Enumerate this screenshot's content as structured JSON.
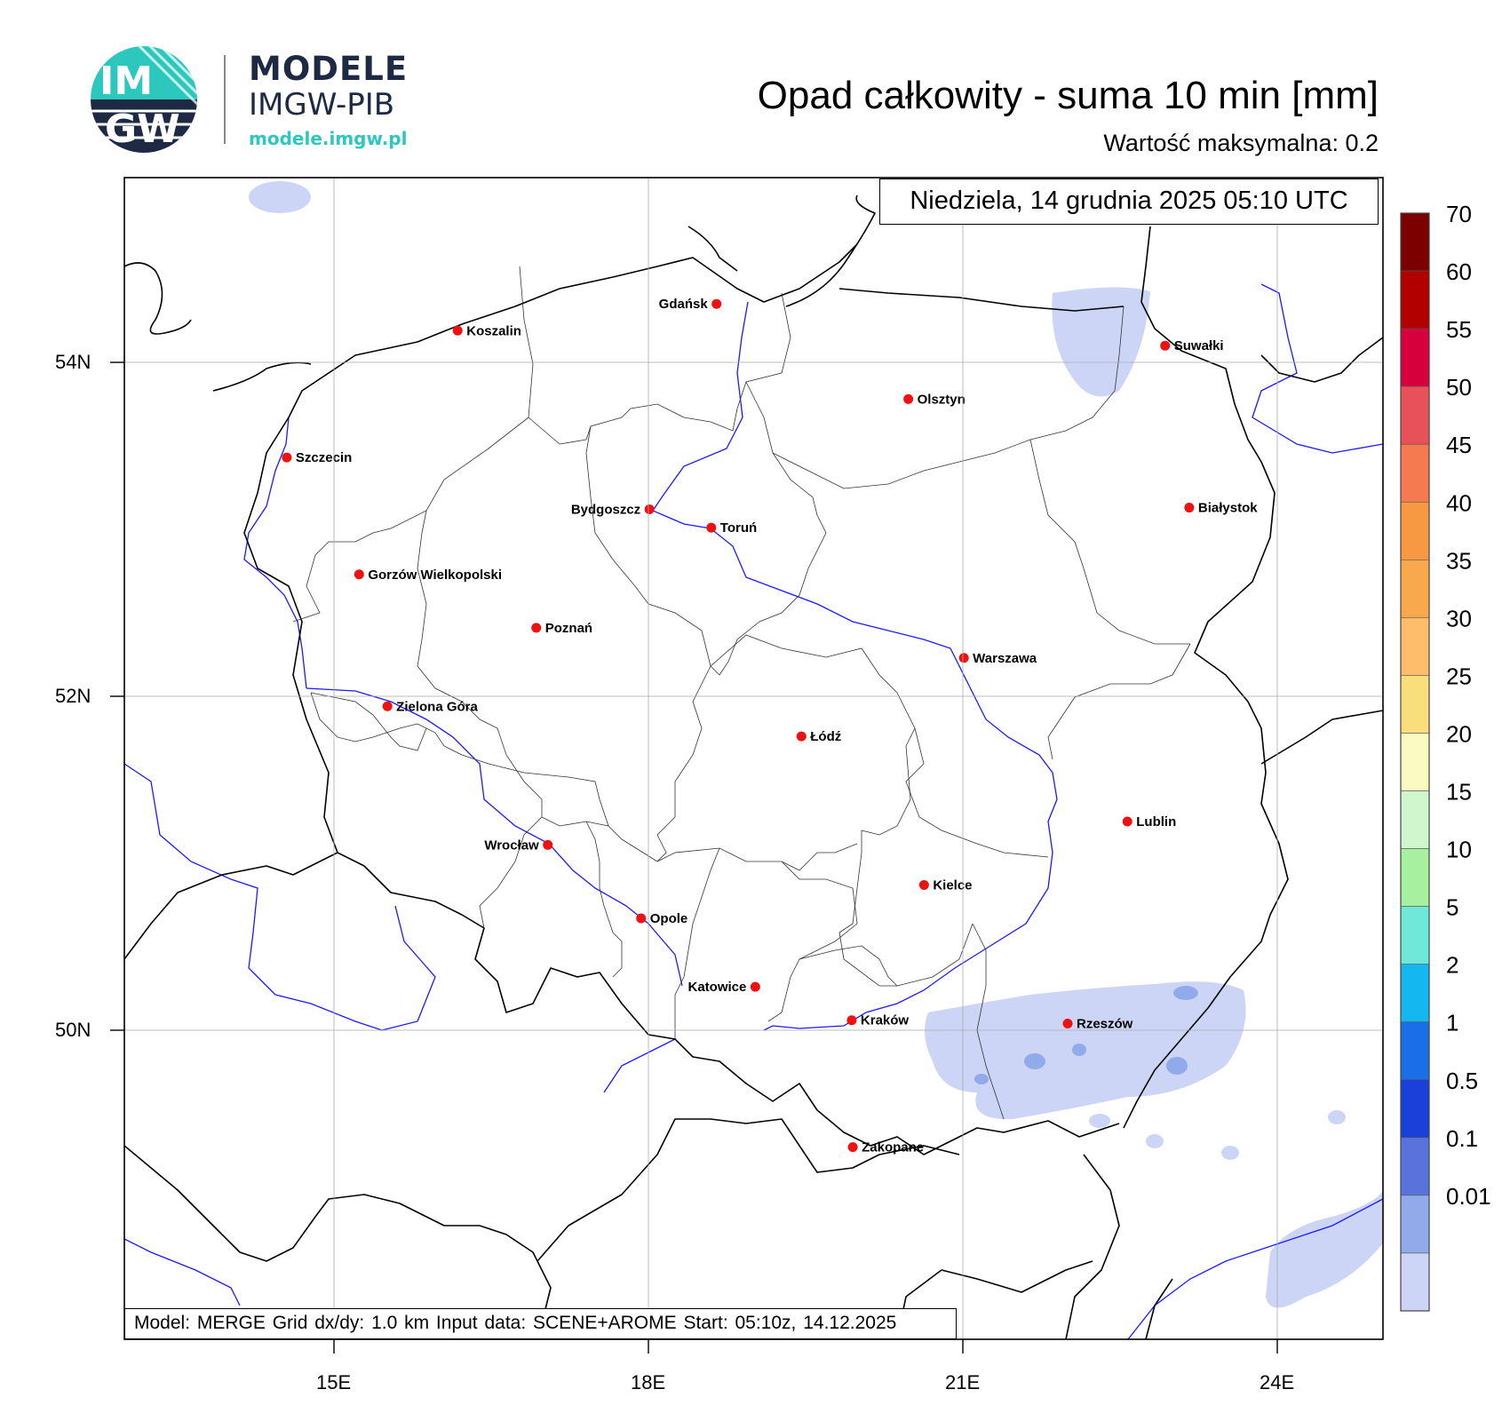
{
  "logo": {
    "badge_top": "IM",
    "badge_bottom": "GW",
    "brand_line1": "MODELE",
    "brand_line2": "IMGW-PIB",
    "url": "modele.imgw.pl",
    "colors": {
      "teal": "#2cc7bd",
      "navy": "#1e2a44",
      "url": "#2cc7bd"
    }
  },
  "header": {
    "title": "Opad całkowity - suma 10 min [mm]",
    "max_value_text": "Wartość maksymalna:   0.2"
  },
  "map": {
    "date_text": "Niedziela, 14 grudnia 2025 05:10 UTC",
    "info_text": "Model: MERGE   Grid dx/dy: 1.0 km   Input data: SCENE+AROME   Start: 05:10z, 14.12.2025",
    "lat_labels": [
      "54N",
      "52N",
      "50N"
    ],
    "lon_labels": [
      "15E",
      "18E",
      "21E",
      "24E"
    ],
    "colors": {
      "river": "#1a1aff",
      "border": "#000000",
      "city_dot": "#ee1111",
      "precip_light": "#ccd5f6",
      "precip_mid": "#91aaea"
    },
    "cities": [
      {
        "name": "Gdańsk",
        "lon": 18.65,
        "lat": 54.35
      },
      {
        "name": "Koszalin",
        "lon": 16.18,
        "lat": 54.19
      },
      {
        "name": "Szczecin",
        "lon": 14.55,
        "lat": 53.43
      },
      {
        "name": "Suwałki",
        "lon": 22.93,
        "lat": 54.1
      },
      {
        "name": "Olsztyn",
        "lon": 20.48,
        "lat": 53.78
      },
      {
        "name": "Białystok",
        "lon": 23.16,
        "lat": 53.13
      },
      {
        "name": "Bydgoszcz",
        "lon": 18.01,
        "lat": 53.12
      },
      {
        "name": "Toruń",
        "lon": 18.6,
        "lat": 53.01
      },
      {
        "name": "Gorzów Wielkopolski",
        "lon": 15.24,
        "lat": 52.73
      },
      {
        "name": "Poznań",
        "lon": 16.93,
        "lat": 52.41
      },
      {
        "name": "Warszawa",
        "lon": 21.01,
        "lat": 52.23
      },
      {
        "name": "Zielona Góra",
        "lon": 15.51,
        "lat": 51.94
      },
      {
        "name": "Łódź",
        "lon": 19.46,
        "lat": 51.76
      },
      {
        "name": "Lublin",
        "lon": 22.57,
        "lat": 51.25
      },
      {
        "name": "Wrocław",
        "lon": 17.04,
        "lat": 51.11
      },
      {
        "name": "Kielce",
        "lon": 20.63,
        "lat": 50.87
      },
      {
        "name": "Opole",
        "lon": 17.93,
        "lat": 50.67
      },
      {
        "name": "Katowice",
        "lon": 19.02,
        "lat": 50.26
      },
      {
        "name": "Rzeszów",
        "lon": 22.0,
        "lat": 50.04
      },
      {
        "name": "Kraków",
        "lon": 19.94,
        "lat": 50.06
      },
      {
        "name": "Zakopane",
        "lon": 19.95,
        "lat": 49.3
      }
    ]
  },
  "colorbar": {
    "labels": [
      "70",
      "60",
      "55",
      "50",
      "45",
      "40",
      "35",
      "30",
      "25",
      "20",
      "15",
      "10",
      "5",
      "2",
      "1",
      "0.5",
      "0.1",
      "0.01"
    ],
    "colors": [
      "#7d0000",
      "#b20000",
      "#d6003c",
      "#e8505a",
      "#f57a4f",
      "#f79943",
      "#f9a94c",
      "#fdbd6a",
      "#f9df7c",
      "#fbfac2",
      "#cff6cc",
      "#a6f0a0",
      "#6ee8d8",
      "#14b7f0",
      "#1a6ee8",
      "#1940d8",
      "#5a73dc",
      "#91aaea",
      "#ccd5f6"
    ]
  }
}
